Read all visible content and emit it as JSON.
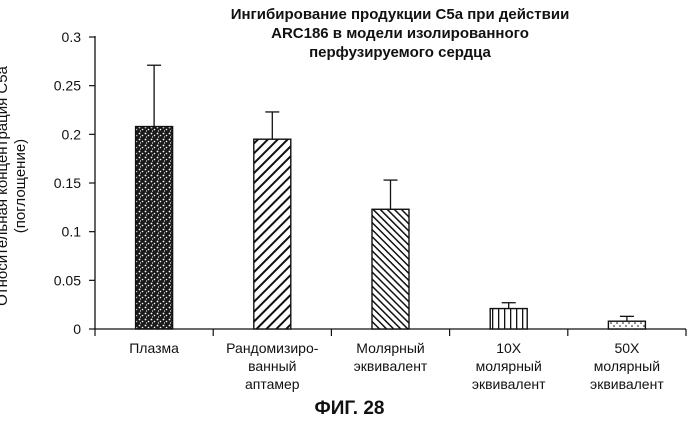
{
  "title_lines": [
    "Ингибирование продукции С5а при действии",
    "ARC186 в модели изолированного",
    "перфузируемого сердца"
  ],
  "ylabel_lines": [
    "Относительная концентрация С5а",
    "(поглощение)"
  ],
  "figure_caption": "ФИГ. 28",
  "chart_data": {
    "type": "bar",
    "categories": [
      [
        "Плазма"
      ],
      [
        "Рандомизиро-",
        "ванный",
        "аптамер"
      ],
      [
        "Молярный",
        "эквивалент"
      ],
      [
        "10X",
        "молярный",
        "эквивалент"
      ],
      [
        "50X",
        "молярный",
        "эквивалент"
      ]
    ],
    "values": [
      0.208,
      0.195,
      0.123,
      0.021,
      0.008
    ],
    "errors": [
      0.063,
      0.028,
      0.03,
      0.006,
      0.005
    ],
    "patterns": [
      "stipple",
      "diag-wide",
      "diag-dense",
      "vertical",
      "dots"
    ],
    "ylim": [
      0,
      0.3
    ],
    "yticks": [
      "0",
      "0.05",
      "0.1",
      "0.15",
      "0.2",
      "0.25",
      "0.3"
    ],
    "grid": false,
    "legend": false
  }
}
